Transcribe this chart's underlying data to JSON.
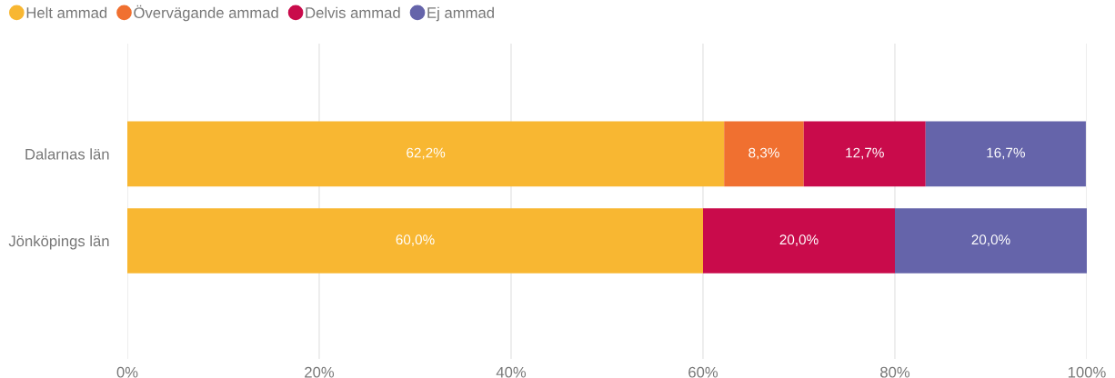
{
  "chart_data": {
    "type": "bar",
    "orientation": "horizontal",
    "stacked": true,
    "categories": [
      "Dalarnas län",
      "Jönköpings län"
    ],
    "series": [
      {
        "name": "Helt ammad",
        "color": "#f8b732",
        "values": [
          62.2,
          60.0
        ],
        "value_labels": [
          "62,2%",
          "60,0%"
        ]
      },
      {
        "name": "Övervägande ammad",
        "color": "#f07030",
        "values": [
          8.3,
          null
        ],
        "value_labels": [
          "8,3%",
          null
        ]
      },
      {
        "name": "Delvis ammad",
        "color": "#c90b4b",
        "values": [
          12.7,
          20.0
        ],
        "value_labels": [
          "12,7%",
          "20,0%"
        ]
      },
      {
        "name": "Ej ammad",
        "color": "#6564aa",
        "values": [
          16.7,
          20.0
        ],
        "value_labels": [
          "16,7%",
          "20,0%"
        ]
      }
    ],
    "xlim": [
      0,
      100
    ],
    "xticks": [
      {
        "value": 0,
        "label": "0%"
      },
      {
        "value": 20,
        "label": "20%"
      },
      {
        "value": 40,
        "label": "40%"
      },
      {
        "value": 60,
        "label": "60%"
      },
      {
        "value": 80,
        "label": "80%"
      },
      {
        "value": 100,
        "label": "100%"
      }
    ],
    "grid": "x",
    "legend": "top left"
  }
}
